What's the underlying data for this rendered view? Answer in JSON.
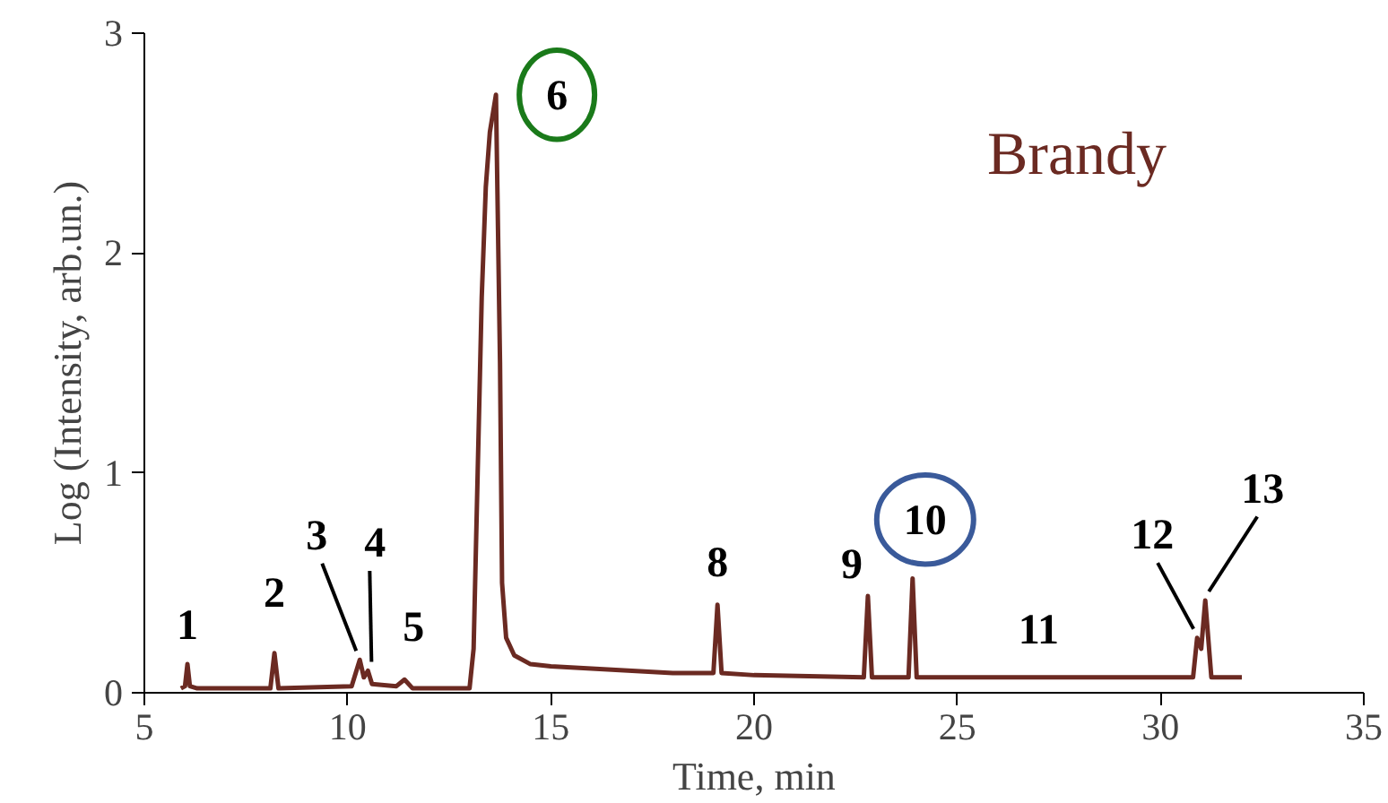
{
  "chart_data": {
    "type": "line",
    "title": "Brandy",
    "xlabel": "Time, min",
    "ylabel": "Log (Intensity, arb.un.)",
    "xlim": [
      5,
      35
    ],
    "ylim": [
      0,
      3
    ],
    "xticks": [
      5,
      10,
      15,
      20,
      25,
      30,
      35
    ],
    "yticks": [
      0,
      1,
      2,
      3
    ],
    "grid": false,
    "series": [
      {
        "color": "#6b2a22",
        "x": [
          5.9,
          6.0,
          6.06,
          6.12,
          6.3,
          8.1,
          8.2,
          8.3,
          10.1,
          10.3,
          10.4,
          10.5,
          10.6,
          11.2,
          11.4,
          11.6,
          13.0,
          13.1,
          13.2,
          13.3,
          13.4,
          13.5,
          13.65,
          13.75,
          13.8,
          13.9,
          14.1,
          14.5,
          15,
          16,
          17,
          18,
          19.0,
          19.1,
          19.2,
          20,
          22.7,
          22.8,
          22.9,
          23.8,
          23.9,
          24.0,
          27,
          30.8,
          30.9,
          31.0,
          31.1,
          31.25,
          32.0
        ],
        "values": [
          0.02,
          0.03,
          0.13,
          0.03,
          0.02,
          0.02,
          0.18,
          0.02,
          0.03,
          0.15,
          0.07,
          0.1,
          0.04,
          0.03,
          0.06,
          0.02,
          0.02,
          0.2,
          1.0,
          1.8,
          2.3,
          2.55,
          2.72,
          1.5,
          0.5,
          0.25,
          0.17,
          0.13,
          0.12,
          0.11,
          0.1,
          0.09,
          0.09,
          0.4,
          0.09,
          0.08,
          0.07,
          0.44,
          0.07,
          0.07,
          0.52,
          0.07,
          0.07,
          0.07,
          0.25,
          0.2,
          0.42,
          0.07,
          0.07
        ]
      }
    ],
    "annotations": [
      {
        "text": "1",
        "x": 6.06,
        "y": 0.13
      },
      {
        "text": "2",
        "x": 8.2,
        "y": 0.18
      },
      {
        "text": "3",
        "x": 10.3,
        "y": 0.15
      },
      {
        "text": "4",
        "x": 10.5,
        "y": 0.1
      },
      {
        "text": "5",
        "x": 11.4,
        "y": 0.06
      },
      {
        "text": "6",
        "x": 13.65,
        "y": 2.72
      },
      {
        "text": "8",
        "x": 19.1,
        "y": 0.4
      },
      {
        "text": "9",
        "x": 22.8,
        "y": 0.44
      },
      {
        "text": "10",
        "x": 23.9,
        "y": 0.52
      },
      {
        "text": "11",
        "x": 27,
        "y": 0.07
      },
      {
        "text": "12",
        "x": 30.9,
        "y": 0.25
      },
      {
        "text": "13",
        "x": 31.1,
        "y": 0.42
      }
    ]
  }
}
